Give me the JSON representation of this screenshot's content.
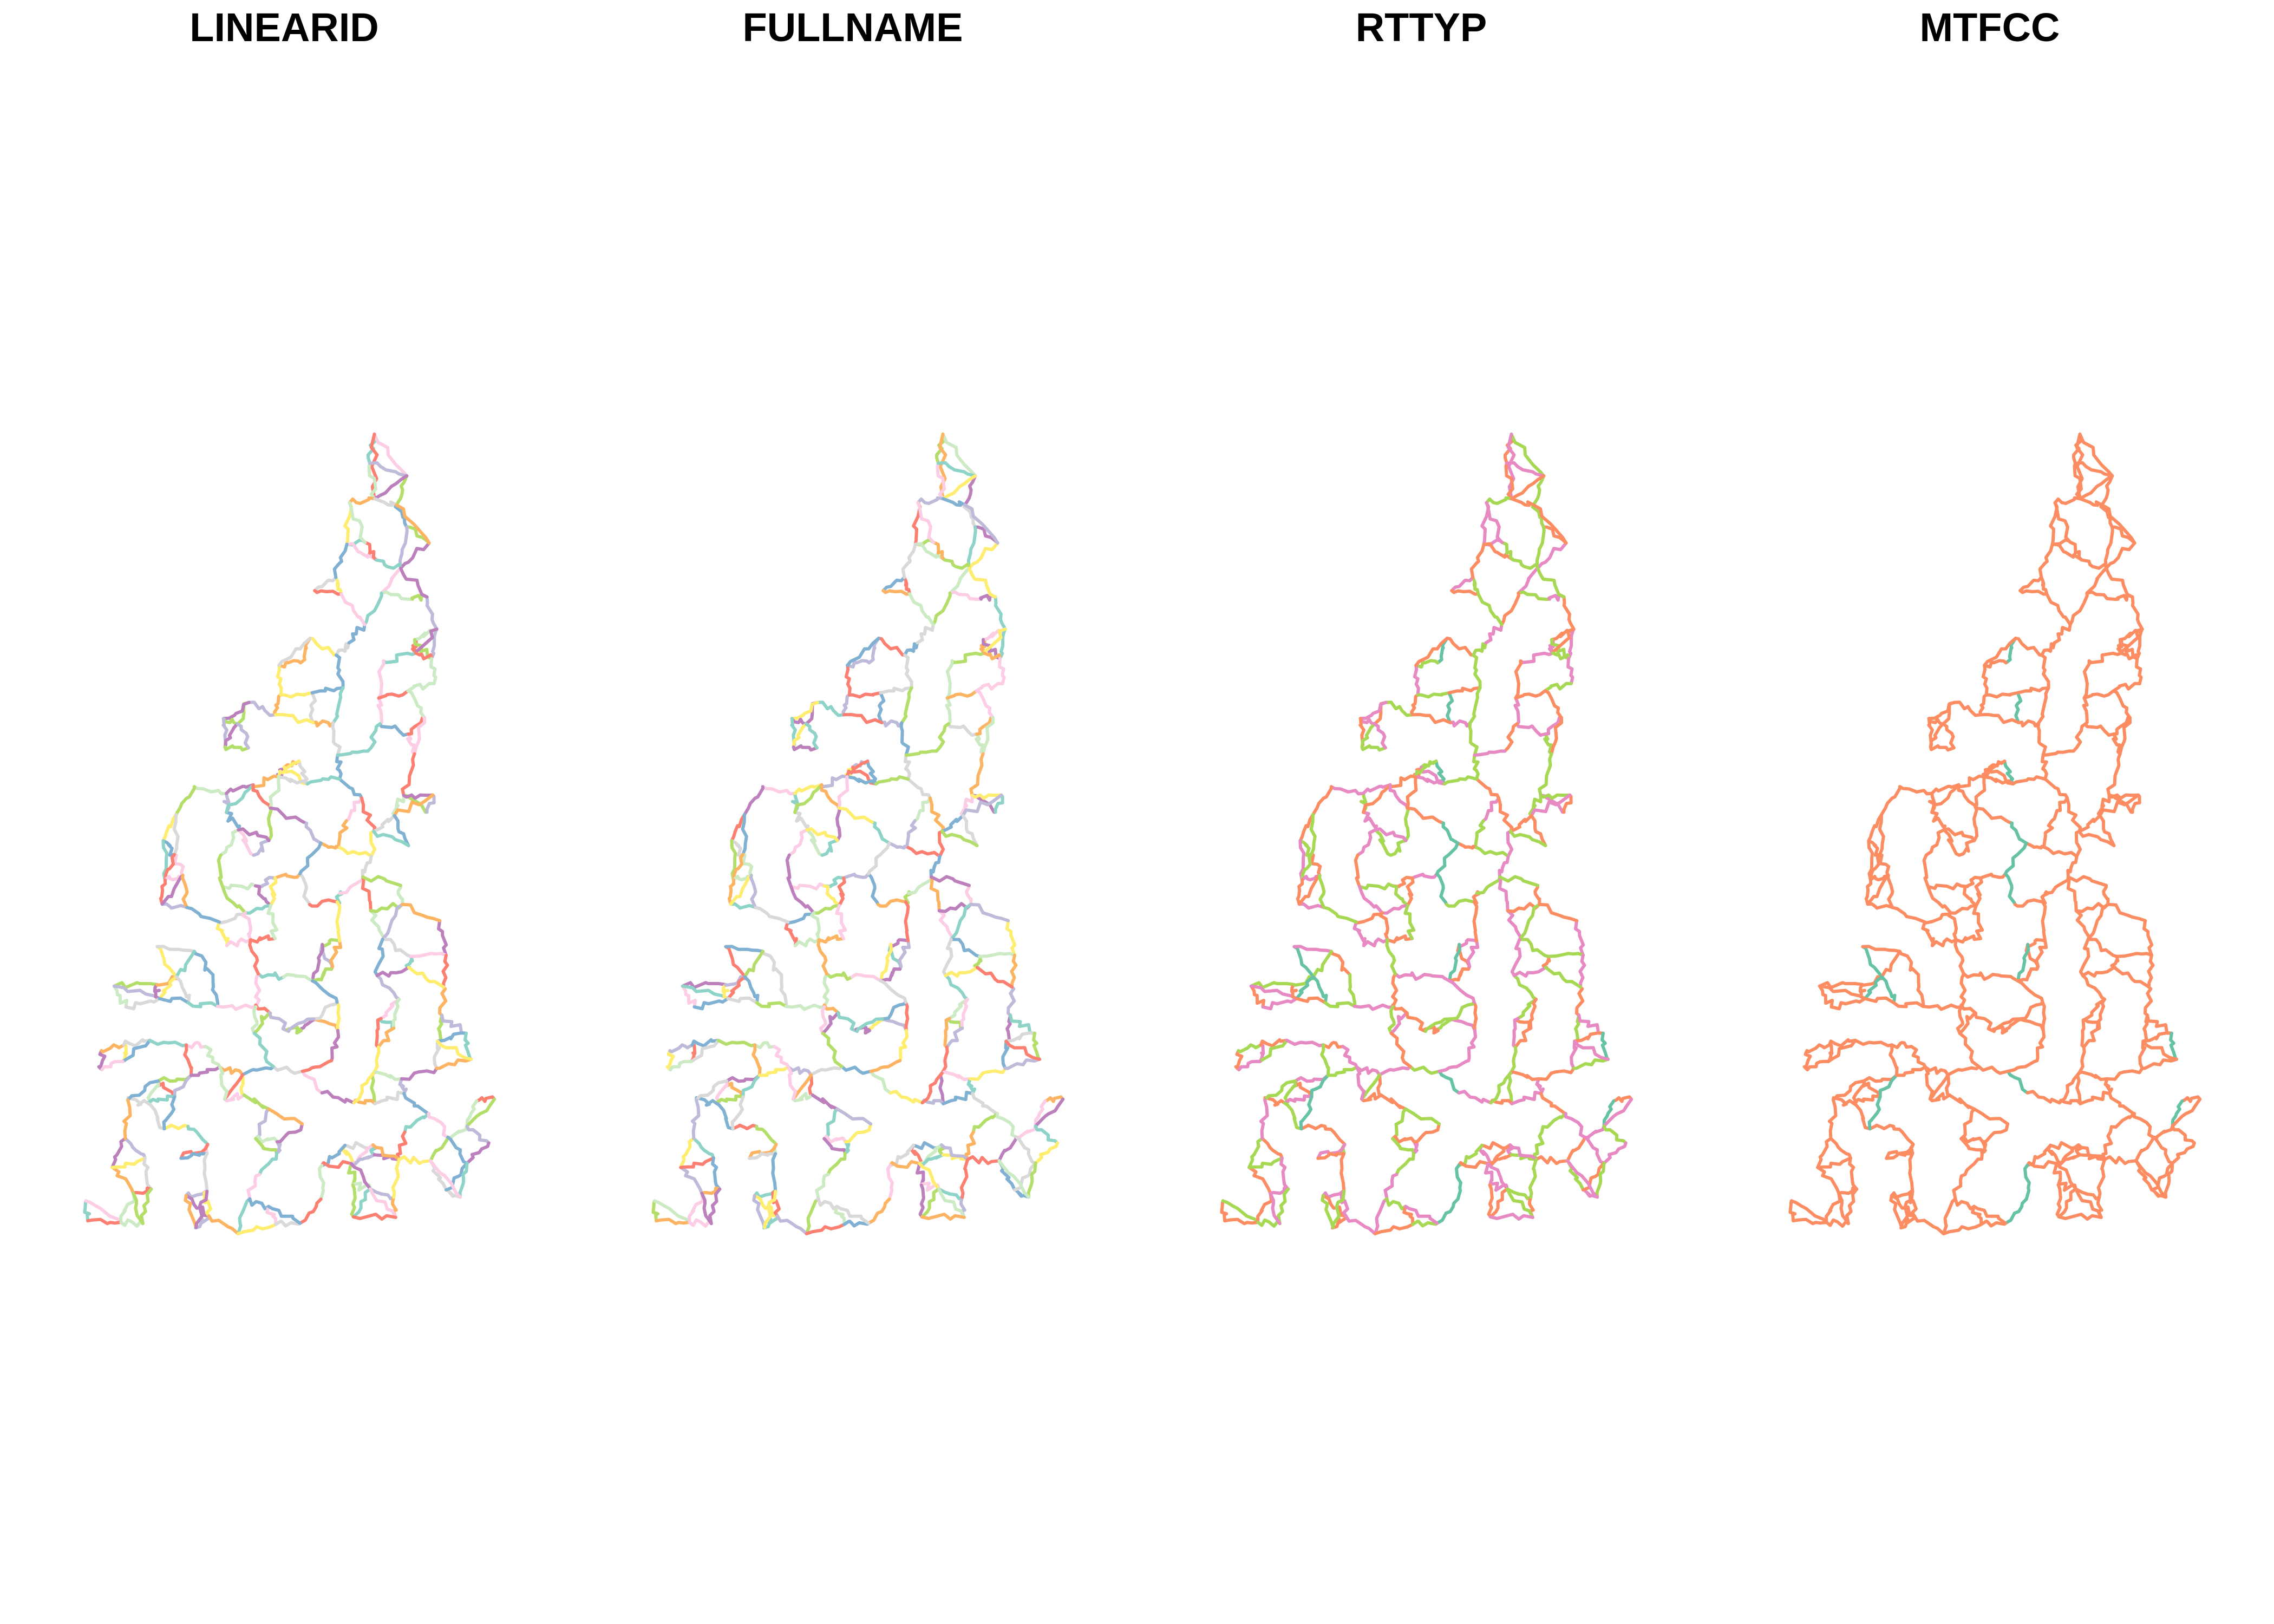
{
  "figure": {
    "panels": [
      {
        "title": "LINEARID",
        "coloring": "unique",
        "palette": [
          "#8dd3c7",
          "#ffed6f",
          "#bebada",
          "#fb8072",
          "#80b1d3",
          "#fdb462",
          "#b3de69",
          "#fccde5",
          "#d9d9d9",
          "#bc80bd",
          "#ccebc5"
        ]
      },
      {
        "title": "FULLNAME",
        "coloring": "unique",
        "palette": [
          "#80b1d3",
          "#ffed6f",
          "#fccde5",
          "#b3de69",
          "#fb8072",
          "#8dd3c7",
          "#fdb462",
          "#d9d9d9",
          "#bebada",
          "#bc80bd",
          "#ccebc5"
        ]
      },
      {
        "title": "RTTYP",
        "coloring": "category",
        "palette": [
          "#fc8d62",
          "#e78ac3",
          "#a6d854",
          "#66c2a5",
          "#8da0cb"
        ]
      },
      {
        "title": "MTFCC",
        "coloring": "category",
        "palette": [
          "#fc8d62",
          "#66c2a5"
        ]
      }
    ]
  }
}
